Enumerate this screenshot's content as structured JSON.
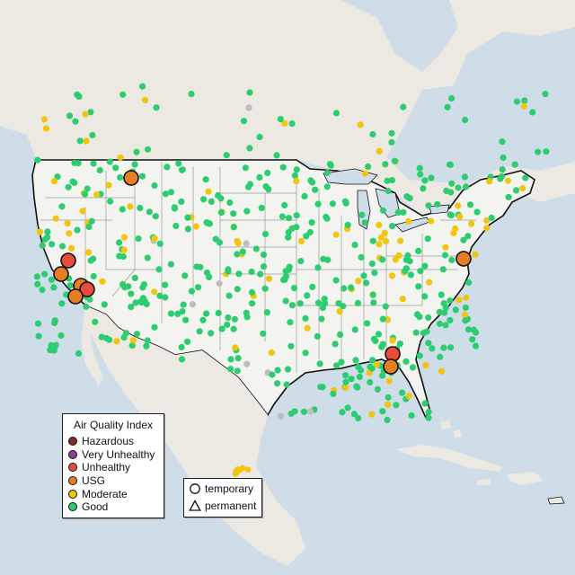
{
  "colors": {
    "ocean": "#cfdde9",
    "land_us": "#f3f3f0",
    "land_other": "#ece9e3",
    "border": "#111111",
    "state_lines": "#9a9a9a",
    "Hazardous": "#7e2a2a",
    "Very Unhealthy": "#8f3f97",
    "Unhealthy": "#e74c3c",
    "USG": "#e67e22",
    "Moderate": "#f1c40f",
    "Good": "#2ecc71",
    "no_data": "#bdbdbd"
  },
  "legend": {
    "title": "Air Quality Index",
    "items": [
      {
        "label": "Hazardous",
        "color": "#7e2a2a"
      },
      {
        "label": "Very Unhealthy",
        "color": "#8f3f97"
      },
      {
        "label": "Unhealthy",
        "color": "#e74c3c"
      },
      {
        "label": "USG",
        "color": "#e67e22"
      },
      {
        "label": "Moderate",
        "color": "#f1c40f"
      },
      {
        "label": "Good",
        "color": "#2ecc71"
      }
    ]
  },
  "type_legend": {
    "items": [
      {
        "label": "temporary",
        "shape": "circle-icon"
      },
      {
        "label": "permanent",
        "shape": "triangle-icon"
      }
    ]
  }
}
